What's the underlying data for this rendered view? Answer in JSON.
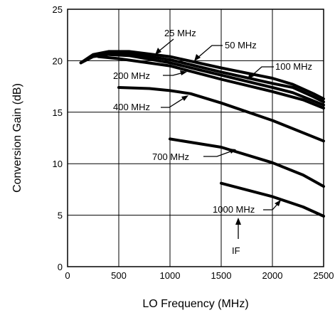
{
  "chart_data": {
    "type": "line",
    "title": "",
    "xlabel": "LO Frequency (MHz)",
    "ylabel": "Conversion Gain (dB)",
    "xlim": [
      0,
      2500
    ],
    "ylim": [
      0,
      25
    ],
    "xticks": [
      "0",
      "500",
      "1000",
      "1500",
      "2000",
      "2500"
    ],
    "yticks": [
      "0",
      "5",
      "10",
      "15",
      "20",
      "25"
    ],
    "grid": true,
    "series": [
      {
        "name": "25 MHz",
        "x": [
          130,
          250,
          400,
          600,
          1000,
          1500,
          2000,
          2200,
          2400,
          2500
        ],
        "y": [
          19.8,
          20.6,
          20.9,
          20.9,
          20.4,
          19.3,
          18.3,
          17.7,
          16.8,
          16.3
        ]
      },
      {
        "name": "50 MHz",
        "x": [
          130,
          250,
          400,
          600,
          1000,
          1500,
          2000,
          2200,
          2400,
          2500
        ],
        "y": [
          19.8,
          20.5,
          20.8,
          20.7,
          20.1,
          18.9,
          17.8,
          17.4,
          16.5,
          16.0
        ]
      },
      {
        "name": "100 MHz",
        "x": [
          130,
          250,
          400,
          600,
          1000,
          1500,
          2000,
          2200,
          2400,
          2500
        ],
        "y": [
          19.8,
          20.4,
          20.6,
          20.5,
          19.8,
          18.6,
          17.4,
          16.9,
          16.1,
          15.7
        ]
      },
      {
        "name": "200 MHz",
        "x": [
          300,
          500,
          1000,
          1500,
          2000,
          2300,
          2500
        ],
        "y": [
          20.4,
          20.2,
          19.5,
          18.2,
          17.0,
          16.2,
          15.4
        ]
      },
      {
        "name": "400 MHz",
        "x": [
          500,
          800,
          1000,
          1200,
          1500,
          2000,
          2500
        ],
        "y": [
          17.4,
          17.3,
          17.1,
          16.8,
          15.9,
          14.2,
          12.2
        ]
      },
      {
        "name": "700 MHz",
        "x": [
          1000,
          1500,
          2000,
          2300,
          2500
        ],
        "y": [
          12.4,
          11.6,
          10.1,
          8.9,
          7.8
        ]
      },
      {
        "name": "1000 MHz",
        "x": [
          1500,
          2000,
          2300,
          2500
        ],
        "y": [
          8.1,
          6.8,
          5.8,
          4.9
        ]
      }
    ],
    "annotations": [
      "25 MHz",
      "50 MHz",
      "100 MHz",
      "200 MHz",
      "400 MHz",
      "700 MHz",
      "1000 MHz",
      "IF"
    ]
  }
}
